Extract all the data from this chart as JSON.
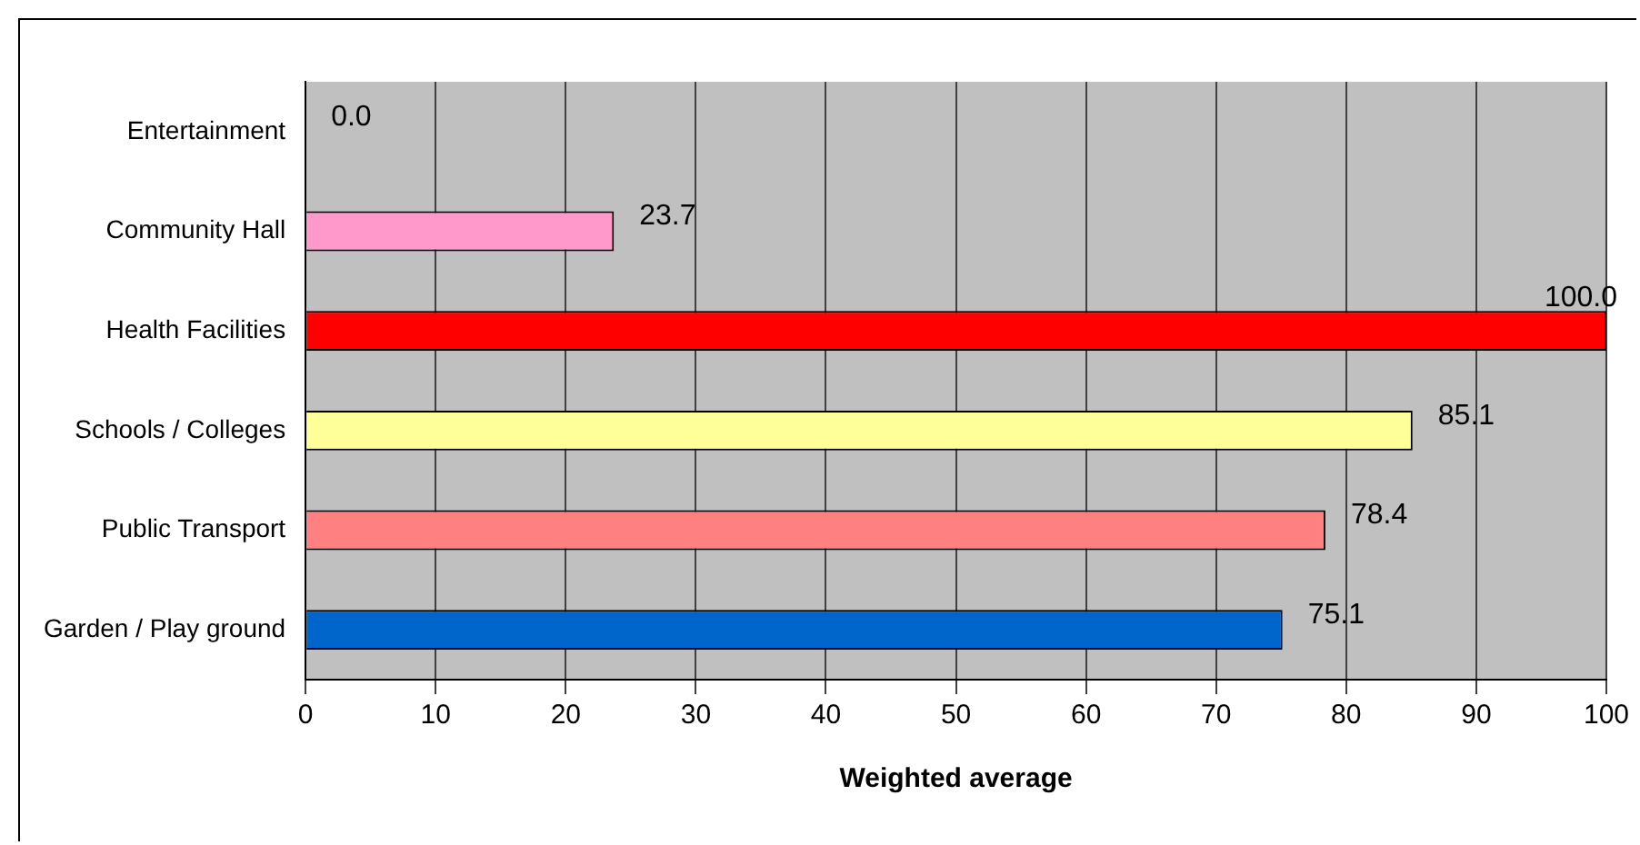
{
  "chart_data": {
    "type": "bar",
    "orientation": "horizontal",
    "xlabel": "Weighted average",
    "categories": [
      "Entertainment",
      "Community Hall",
      "Health Facilities",
      "Schools / Colleges",
      "Public Transport",
      "Garden / Play ground"
    ],
    "values": [
      0,
      23.7,
      100,
      85.1,
      78.4,
      75.1
    ],
    "colors": [
      "#4b4ba0",
      "#ff99cc",
      "#ff0000",
      "#ffff99",
      "#ff8080",
      "#0066cc"
    ],
    "value_labels": [
      "0.0",
      "23.7",
      "100.0",
      "85.1",
      "78.4",
      "75.1"
    ],
    "xlim": [
      0,
      100
    ],
    "xticks": [
      0,
      10,
      20,
      30,
      40,
      50,
      60,
      70,
      80,
      90,
      100
    ],
    "grid": "x",
    "legend": false
  }
}
